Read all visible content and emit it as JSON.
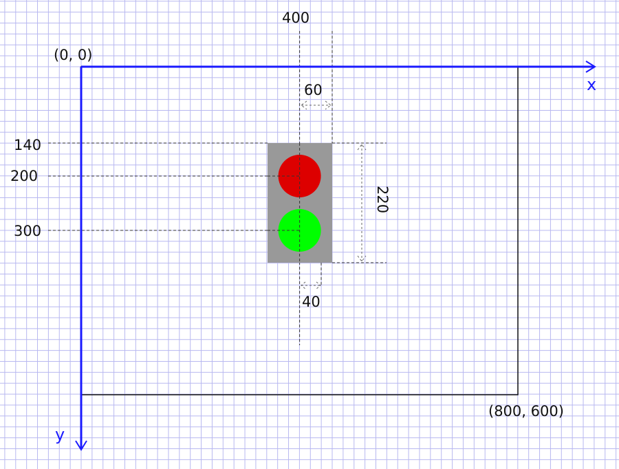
{
  "labels": {
    "origin": "(0, 0)",
    "corner": "(800, 600)",
    "x_axis": "x",
    "y_axis": "y",
    "x_400": "400",
    "y_140": "140",
    "y_200": "200",
    "y_300": "300",
    "width_60": "60",
    "height_220": "220",
    "radius_40": "40"
  },
  "colors": {
    "axis": "#1a1aff",
    "grid": "#b8b8f0",
    "box": "#999999",
    "red_light": "#dd0000",
    "green_light": "#00ff00"
  }
}
